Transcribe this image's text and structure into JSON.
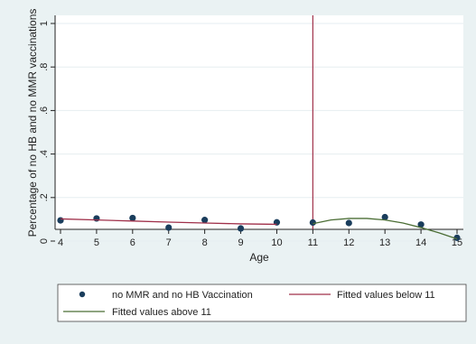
{
  "chart_data": {
    "type": "scatter",
    "title": "",
    "xlabel": "Age",
    "ylabel": "Percentage of no HB and no MMR vaccinations",
    "xlim": [
      4,
      15
    ],
    "ylim": [
      0,
      1
    ],
    "x_ticks": [
      "4",
      "5",
      "6",
      "7",
      "8",
      "9",
      "10",
      "11",
      "12",
      "13",
      "14",
      "15"
    ],
    "y_ticks": [
      "0",
      ".2",
      ".4",
      ".6",
      ".8",
      "1"
    ],
    "grid": "horizontal",
    "legend_position": "bottom",
    "reference_line": {
      "x": 11,
      "color": "#a0304a"
    },
    "series": [
      {
        "name": "no MMR and no HB Vaccination",
        "kind": "scatter",
        "color": "#1a3d5c",
        "x": [
          4,
          5,
          6,
          7,
          8,
          9,
          10,
          11,
          12,
          13,
          14,
          15
        ],
        "y": [
          0.095,
          0.104,
          0.106,
          0.062,
          0.097,
          0.058,
          0.086,
          0.085,
          0.083,
          0.11,
          0.076,
          0.015
        ]
      },
      {
        "name": "Fitted values below 11",
        "kind": "line",
        "color": "#a0304a",
        "x": [
          4,
          5,
          6,
          7,
          8,
          9,
          10
        ],
        "y": [
          0.102,
          0.097,
          0.092,
          0.087,
          0.083,
          0.079,
          0.077
        ]
      },
      {
        "name": "Fitted values above 11",
        "kind": "line",
        "color": "#4b6e35",
        "x": [
          11,
          11.5,
          12,
          12.5,
          13,
          13.5,
          14,
          14.5,
          15
        ],
        "y": [
          0.08,
          0.097,
          0.104,
          0.104,
          0.097,
          0.083,
          0.062,
          0.038,
          0.01
        ]
      }
    ]
  }
}
